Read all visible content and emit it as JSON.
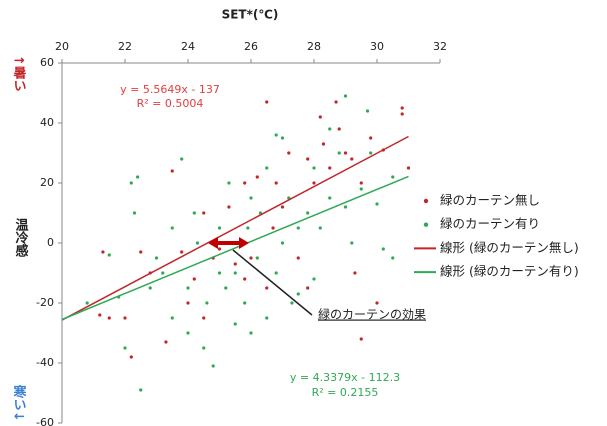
{
  "chart_data": {
    "type": "scatter",
    "title": "SET*(℃)",
    "y_label_top": "↑暑い",
    "y_label": "温冷感",
    "y_label_bottom": "寒い↓",
    "xlim": [
      20,
      32
    ],
    "xticks": [
      20,
      22,
      24,
      26,
      28,
      30,
      32
    ],
    "ylim": [
      -60,
      60
    ],
    "yticks": [
      -60,
      -40,
      -20,
      0,
      20,
      40,
      60
    ],
    "series": [
      {
        "name": "緑のカーテン無し",
        "color": "#c0262a",
        "x": [
          21.3,
          21.2,
          21.5,
          22,
          22.2,
          22.5,
          22.8,
          23.3,
          23.5,
          23.8,
          24,
          24.2,
          24.5,
          24.8,
          25,
          25.3,
          25.5,
          25.8,
          26,
          26.2,
          26.5,
          26.5,
          26.8,
          27,
          27.2,
          27.5,
          27.8,
          28,
          28.2,
          28.3,
          28.5,
          28.7,
          28.8,
          29,
          29.2,
          29.3,
          29.5,
          29.5,
          30,
          30.2,
          30.8,
          30.8,
          31,
          29.8,
          27.8,
          26.7,
          25.8,
          24.5
        ],
        "values": [
          -3,
          -24,
          -25,
          -25,
          -38,
          -3,
          -10,
          -33,
          24,
          -3,
          -20,
          -12,
          10,
          -5,
          -2,
          12,
          -7,
          20,
          -5,
          22,
          47,
          -15,
          20,
          12,
          30,
          -5,
          28,
          20,
          42,
          33,
          25,
          47,
          38,
          30,
          28,
          -10,
          -32,
          20,
          -20,
          31,
          45,
          43,
          25,
          35,
          -15,
          5,
          -12,
          -25
        ]
      },
      {
        "name": "緑のカーテン有り",
        "color": "#2eaa55",
        "x": [
          20.8,
          21.5,
          21.8,
          22,
          22.2,
          22.3,
          22.4,
          22.5,
          22.8,
          23,
          23.2,
          23.5,
          23.5,
          23.8,
          24,
          24,
          24.2,
          24.5,
          24.6,
          24.8,
          25,
          25,
          25.2,
          25.3,
          25.5,
          25.5,
          25.8,
          25.9,
          26,
          26,
          26.2,
          26.3,
          26.5,
          26.5,
          26.8,
          27,
          27,
          27.2,
          27.5,
          27.5,
          27.8,
          28,
          28,
          28.2,
          28.5,
          28.5,
          28.8,
          29,
          29,
          29.2,
          29.5,
          29.7,
          29.8,
          30,
          30.2,
          30.5,
          30.5,
          27.3,
          26.8,
          24.3
        ],
        "values": [
          -20,
          -4,
          -18,
          -35,
          20,
          10,
          22,
          -49,
          -15,
          -5,
          -10,
          -25,
          5,
          28,
          -15,
          -30,
          10,
          -35,
          -20,
          -41,
          -10,
          5,
          -15,
          20,
          -27,
          -10,
          -20,
          5,
          -30,
          15,
          -5,
          10,
          -25,
          25,
          -10,
          0,
          35,
          15,
          -17,
          5,
          10,
          25,
          -12,
          5,
          15,
          38,
          30,
          49,
          12,
          0,
          18,
          44,
          30,
          13,
          -2,
          -5,
          22,
          -20,
          36,
          0
        ]
      }
    ],
    "trendlines": [
      {
        "name": "線形 (緑のカーテン無し)",
        "color": "#c0262a",
        "x": [
          20,
          31
        ],
        "values": [
          -25.7,
          35.5
        ],
        "equation": "y = 5.5649x - 137",
        "r2": "R² = 0.5004"
      },
      {
        "name": "線形 (緑のカーテン有り)",
        "color": "#2eaa55",
        "x": [
          20,
          31
        ],
        "values": [
          -25.5,
          22.2
        ],
        "equation": "y = 4.3379x - 112.3",
        "r2": "R² = 0.2155"
      }
    ],
    "annotation": "緑のカーテンの効果"
  }
}
